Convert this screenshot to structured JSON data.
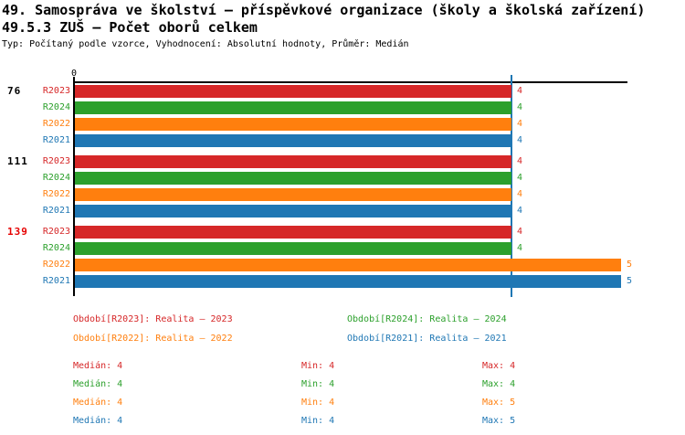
{
  "header": {
    "title_line1": "49. Samospráva ve školství – příspěvkové organizace (školy a školská zařízení)",
    "title_line2": "49.5.3 ZUŠ – Počet oborů celkem",
    "subtitle": "Typ: Počítaný podle vzorce, Vyhodnocení: Absolutní hodnoty, Průměr: Medián"
  },
  "colors": {
    "series": {
      "R2023": "#d62728",
      "R2024": "#2ca02c",
      "R2022": "#ff7f0e",
      "R2021": "#1f77b4"
    },
    "axis": "#000000",
    "median_line": "#1f77b4",
    "alert_group_label": "#e60000"
  },
  "chart_data": {
    "type": "bar",
    "orientation": "horizontal",
    "x_axis": {
      "origin_label": "0",
      "min": 0,
      "implied_max": 5,
      "gridlines": false
    },
    "median_line_value": 4,
    "series_order": [
      "R2023",
      "R2024",
      "R2022",
      "R2021"
    ],
    "categories": [
      "76",
      "111",
      "139"
    ],
    "groups": [
      {
        "label": "76",
        "label_color": "#000000",
        "bars": [
          {
            "series": "R2023",
            "value": 4
          },
          {
            "series": "R2024",
            "value": 4
          },
          {
            "series": "R2022",
            "value": 4
          },
          {
            "series": "R2021",
            "value": 4
          }
        ]
      },
      {
        "label": "111",
        "label_color": "#000000",
        "bars": [
          {
            "series": "R2023",
            "value": 4
          },
          {
            "series": "R2024",
            "value": 4
          },
          {
            "series": "R2022",
            "value": 4
          },
          {
            "series": "R2021",
            "value": 4
          }
        ]
      },
      {
        "label": "139",
        "label_color": "#e60000",
        "bars": [
          {
            "series": "R2023",
            "value": 4
          },
          {
            "series": "R2024",
            "value": 4
          },
          {
            "series": "R2022",
            "value": 5
          },
          {
            "series": "R2021",
            "value": 5
          }
        ]
      }
    ]
  },
  "legend": [
    {
      "series": "R2023",
      "text": "Období[R2023]: Realita – 2023"
    },
    {
      "series": "R2024",
      "text": "Období[R2024]: Realita – 2024"
    },
    {
      "series": "R2022",
      "text": "Období[R2022]: Realita – 2022"
    },
    {
      "series": "R2021",
      "text": "Období[R2021]: Realita – 2021"
    }
  ],
  "stats": [
    {
      "series": "R2023",
      "median": "Medián: 4",
      "min": "Min: 4",
      "max": "Max: 4"
    },
    {
      "series": "R2024",
      "median": "Medián: 4",
      "min": "Min: 4",
      "max": "Max: 4"
    },
    {
      "series": "R2022",
      "median": "Medián: 4",
      "min": "Min: 4",
      "max": "Max: 5"
    },
    {
      "series": "R2021",
      "median": "Medián: 4",
      "min": "Min: 4",
      "max": "Max: 5"
    }
  ]
}
